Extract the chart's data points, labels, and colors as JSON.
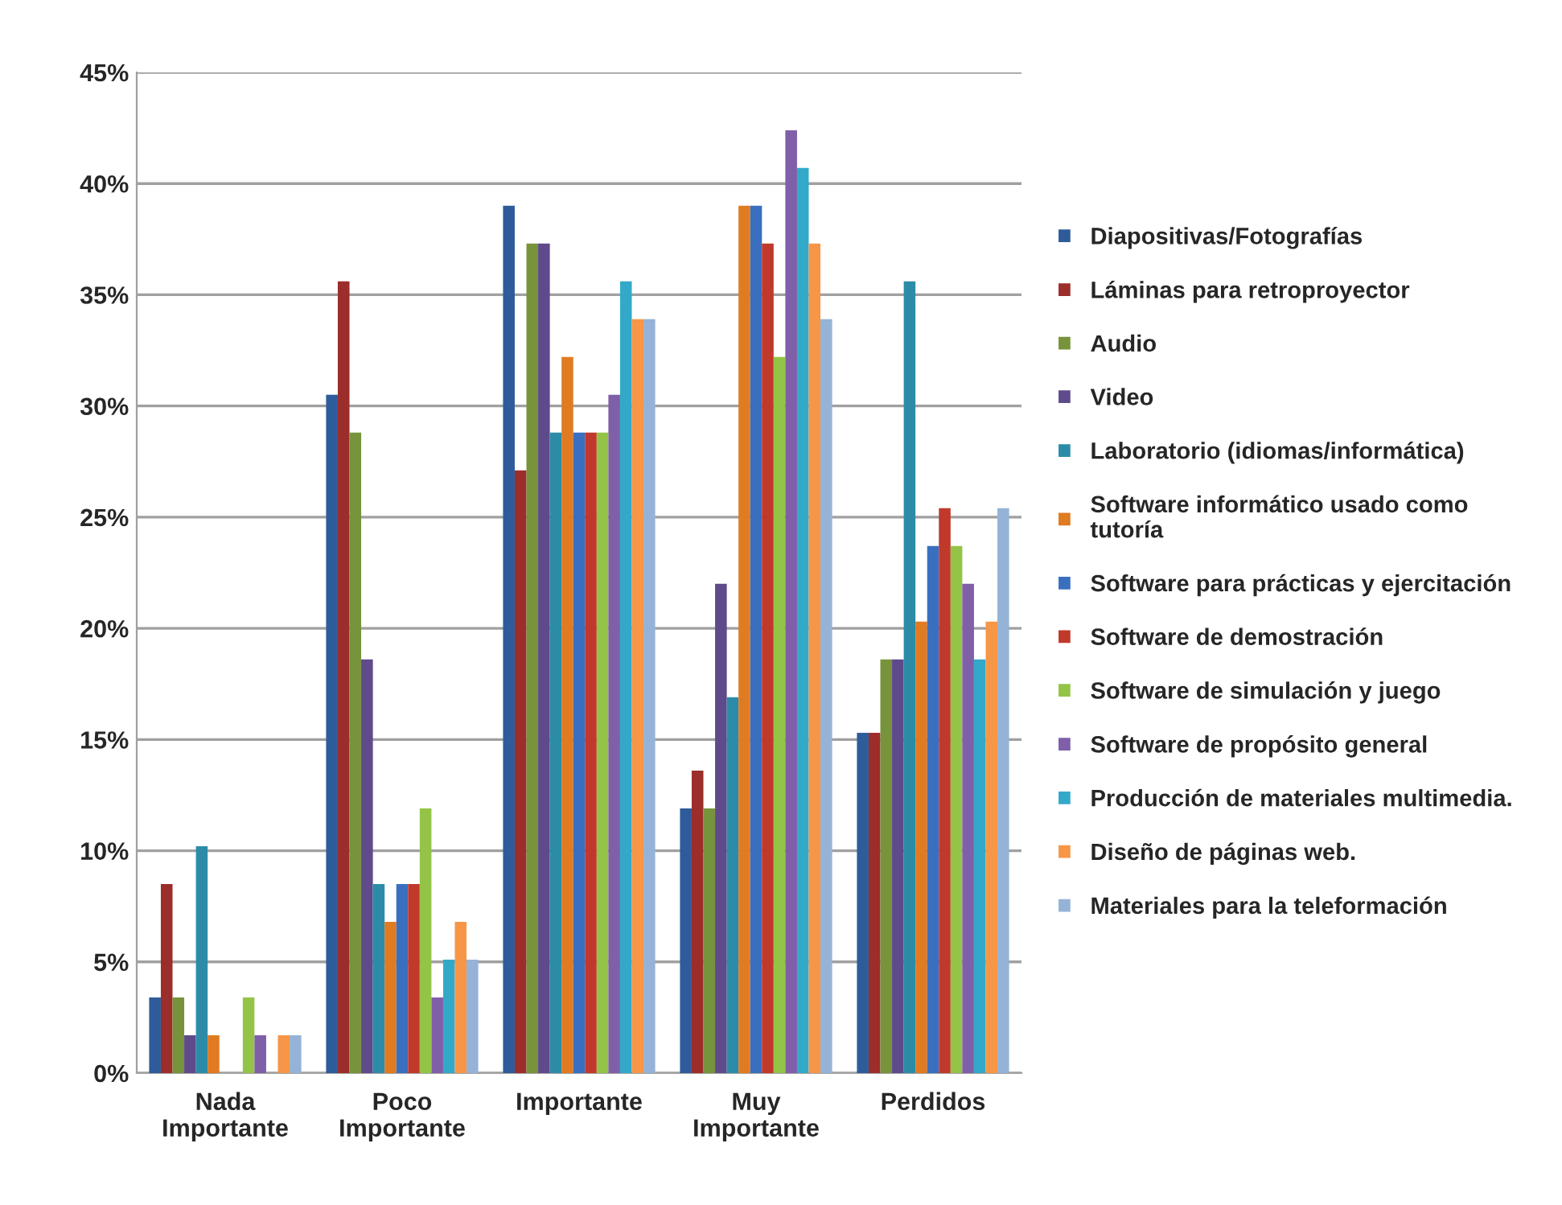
{
  "chart_data": {
    "type": "bar",
    "categories": [
      "Nada\nImportante",
      "Poco\nImportante",
      "Importante",
      "Muy\nImportante",
      "Perdidos"
    ],
    "series": [
      {
        "name": "Diapositivas/Fotografías",
        "color": "#2e5c9a",
        "values": [
          3.4,
          30.5,
          39.0,
          11.9,
          15.3
        ]
      },
      {
        "name": "Láminas para retroproyector",
        "color": "#9b2d2a",
        "values": [
          8.5,
          35.6,
          27.1,
          13.6,
          15.3
        ]
      },
      {
        "name": "Audio",
        "color": "#77933c",
        "values": [
          3.4,
          28.8,
          37.3,
          11.9,
          18.6
        ]
      },
      {
        "name": "Video",
        "color": "#5f4a8b",
        "values": [
          1.7,
          18.6,
          37.3,
          22.0,
          18.6
        ]
      },
      {
        "name": "Laboratorio (idiomas/informática)",
        "color": "#2c8ca8",
        "values": [
          10.2,
          8.5,
          28.8,
          16.9,
          35.6
        ]
      },
      {
        "name": "Software informático usado como\ntutoría",
        "color": "#e07b22",
        "values": [
          1.7,
          6.8,
          32.2,
          39.0,
          20.3
        ]
      },
      {
        "name": "Software para prácticas y ejercitación",
        "color": "#3a6fbf",
        "values": [
          0,
          8.5,
          28.8,
          39.0,
          23.7
        ]
      },
      {
        "name": "Software de demostración",
        "color": "#c0392b",
        "values": [
          0,
          8.5,
          28.8,
          37.3,
          25.4
        ]
      },
      {
        "name": "Software de simulación y juego",
        "color": "#94c447",
        "values": [
          3.4,
          11.9,
          28.8,
          32.2,
          23.7
        ]
      },
      {
        "name": "Software de propósito general",
        "color": "#7f5fa8",
        "values": [
          1.7,
          3.4,
          30.5,
          42.4,
          22.0
        ]
      },
      {
        "name": "Producción de materiales multimedia.",
        "color": "#33a9c9",
        "values": [
          0,
          5.1,
          35.6,
          40.7,
          18.6
        ]
      },
      {
        "name": "Diseño de páginas web.",
        "color": "#f79646",
        "values": [
          1.7,
          6.8,
          33.9,
          37.3,
          20.3
        ]
      },
      {
        "name": "Materiales para la teleformación",
        "color": "#95b3d7",
        "values": [
          1.7,
          5.1,
          33.9,
          33.9,
          25.4
        ]
      }
    ],
    "ylim": [
      0,
      45
    ],
    "yticks": [
      {
        "value": 0,
        "label": "0%"
      },
      {
        "value": 5,
        "label": "5%"
      },
      {
        "value": 10,
        "label": "10%"
      },
      {
        "value": 15,
        "label": "15%"
      },
      {
        "value": 20,
        "label": "20%"
      },
      {
        "value": 25,
        "label": "25%"
      },
      {
        "value": 30,
        "label": "30%"
      },
      {
        "value": 35,
        "label": "35%"
      },
      {
        "value": 40,
        "label": "40%"
      },
      {
        "value": 45,
        "label": "45%"
      }
    ],
    "grid": "y",
    "legend": "right"
  }
}
